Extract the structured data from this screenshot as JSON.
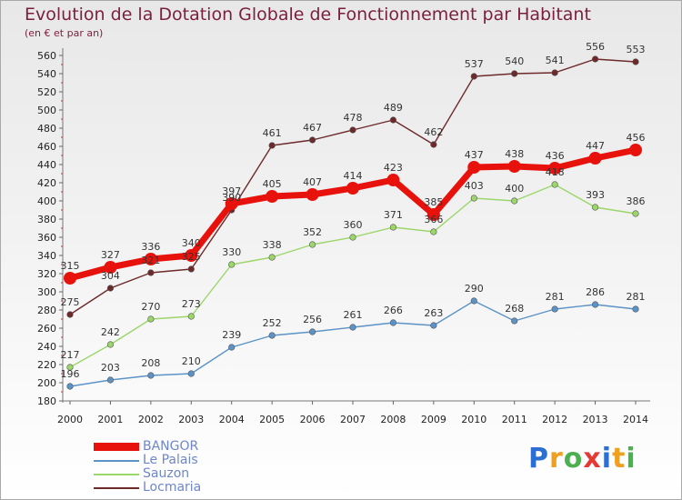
{
  "header": {
    "title": "Evolution de la Dotation Globale de Fonctionnement par Habitant",
    "subtitle": "(en € et par an)"
  },
  "logo": {
    "text": "Proxiti",
    "letters": [
      {
        "ch": "P",
        "color": "#2a6fd1"
      },
      {
        "ch": "r",
        "color": "#f0a020"
      },
      {
        "ch": "o",
        "color": "#4caf50"
      },
      {
        "ch": "x",
        "color": "#e53935"
      },
      {
        "ch": "i",
        "color": "#2a6fd1"
      },
      {
        "ch": "t",
        "color": "#f0a020"
      },
      {
        "ch": "i",
        "color": "#4caf50"
      }
    ]
  },
  "chart_data": {
    "type": "line",
    "title": "Evolution de la Dotation Globale de Fonctionnement par Habitant",
    "subtitle": "(en € et par an)",
    "x": [
      2000,
      2001,
      2002,
      2003,
      2004,
      2005,
      2006,
      2007,
      2008,
      2009,
      2010,
      2011,
      2012,
      2013,
      2014
    ],
    "ylim": [
      180,
      560
    ],
    "yticks": [
      180,
      200,
      220,
      240,
      260,
      280,
      300,
      320,
      340,
      360,
      380,
      400,
      420,
      440,
      460,
      480,
      500,
      520,
      540,
      560
    ],
    "grid": false,
    "legend_position": "bottom-left",
    "series": [
      {
        "name": "BANGOR",
        "color": "#e8120c",
        "values": [
          315,
          327,
          336,
          340,
          397,
          405,
          407,
          414,
          423,
          385,
          437,
          438,
          436,
          447,
          456
        ]
      },
      {
        "name": "Le Palais",
        "color": "#5b93c6",
        "values": [
          196,
          203,
          208,
          210,
          239,
          252,
          256,
          261,
          266,
          263,
          290,
          268,
          281,
          286,
          281
        ]
      },
      {
        "name": "Sauzon",
        "color": "#9bd66a",
        "values": [
          217,
          242,
          270,
          273,
          330,
          338,
          352,
          360,
          371,
          366,
          403,
          400,
          418,
          393,
          386
        ]
      },
      {
        "name": "Locmaria",
        "color": "#6e2a2a",
        "values": [
          275,
          304,
          321,
          325,
          390,
          461,
          467,
          478,
          489,
          462,
          537,
          540,
          541,
          556,
          553
        ]
      }
    ]
  }
}
